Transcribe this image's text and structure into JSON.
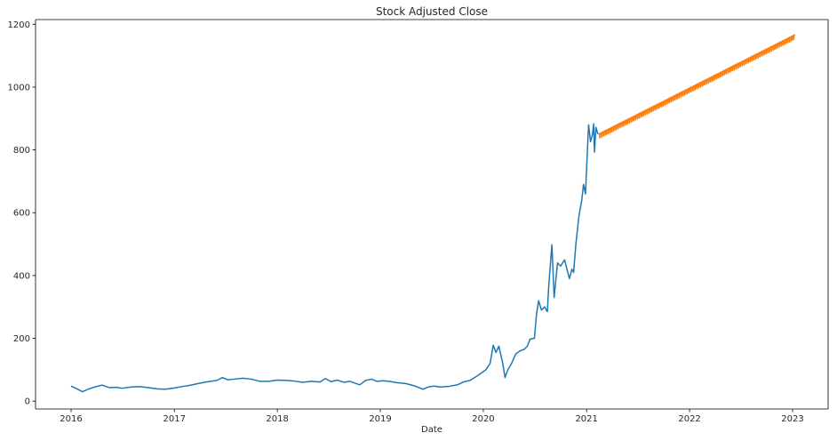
{
  "chart_data": {
    "type": "line",
    "title": "Stock Adjusted Close",
    "xlabel": "Date",
    "ylabel": "",
    "x_axis": "date",
    "xlim": [
      "2015-08-28",
      "2023-05-07"
    ],
    "ylim": [
      -25,
      1215
    ],
    "grid": false,
    "legend": "none",
    "x_ticks": [
      "2016",
      "2017",
      "2018",
      "2019",
      "2020",
      "2021",
      "2022",
      "2023"
    ],
    "y_ticks": [
      0,
      200,
      400,
      600,
      800,
      1000,
      1200
    ],
    "series": [
      {
        "color": "#1f77b4",
        "points": [
          [
            "2016-01-01",
            48
          ],
          [
            "2016-01-20",
            40
          ],
          [
            "2016-02-10",
            30
          ],
          [
            "2016-03-01",
            38
          ],
          [
            "2016-03-25",
            45
          ],
          [
            "2016-04-20",
            51
          ],
          [
            "2016-05-15",
            43
          ],
          [
            "2016-06-10",
            44
          ],
          [
            "2016-07-01",
            41
          ],
          [
            "2016-08-01",
            45
          ],
          [
            "2016-09-01",
            46
          ],
          [
            "2016-10-01",
            43
          ],
          [
            "2016-11-01",
            39
          ],
          [
            "2016-12-01",
            38
          ],
          [
            "2017-01-01",
            42
          ],
          [
            "2017-02-01",
            47
          ],
          [
            "2017-03-01",
            51
          ],
          [
            "2017-04-01",
            57
          ],
          [
            "2017-05-01",
            62
          ],
          [
            "2017-06-01",
            66
          ],
          [
            "2017-06-20",
            75
          ],
          [
            "2017-07-10",
            68
          ],
          [
            "2017-08-01",
            70
          ],
          [
            "2017-09-01",
            73
          ],
          [
            "2017-10-01",
            70
          ],
          [
            "2017-11-01",
            63
          ],
          [
            "2017-12-01",
            63
          ],
          [
            "2018-01-01",
            67
          ],
          [
            "2018-02-01",
            66
          ],
          [
            "2018-03-01",
            64
          ],
          [
            "2018-04-01",
            60
          ],
          [
            "2018-05-01",
            63
          ],
          [
            "2018-06-01",
            61
          ],
          [
            "2018-06-20",
            72
          ],
          [
            "2018-07-10",
            62
          ],
          [
            "2018-08-01",
            67
          ],
          [
            "2018-08-25",
            60
          ],
          [
            "2018-09-15",
            63
          ],
          [
            "2018-10-01",
            58
          ],
          [
            "2018-10-20",
            52
          ],
          [
            "2018-11-10",
            66
          ],
          [
            "2018-12-01",
            70
          ],
          [
            "2018-12-20",
            63
          ],
          [
            "2019-01-10",
            65
          ],
          [
            "2019-02-01",
            63
          ],
          [
            "2019-03-01",
            59
          ],
          [
            "2019-04-01",
            56
          ],
          [
            "2019-05-01",
            49
          ],
          [
            "2019-06-01",
            38
          ],
          [
            "2019-06-20",
            45
          ],
          [
            "2019-07-10",
            48
          ],
          [
            "2019-08-01",
            45
          ],
          [
            "2019-09-01",
            47
          ],
          [
            "2019-10-01",
            52
          ],
          [
            "2019-10-25",
            62
          ],
          [
            "2019-11-15",
            66
          ],
          [
            "2019-12-10",
            80
          ],
          [
            "2020-01-10",
            100
          ],
          [
            "2020-01-25",
            120
          ],
          [
            "2020-02-05",
            178
          ],
          [
            "2020-02-15",
            155
          ],
          [
            "2020-02-25",
            175
          ],
          [
            "2020-03-10",
            120
          ],
          [
            "2020-03-18",
            75
          ],
          [
            "2020-03-28",
            100
          ],
          [
            "2020-04-10",
            120
          ],
          [
            "2020-04-25",
            150
          ],
          [
            "2020-05-10",
            160
          ],
          [
            "2020-05-25",
            165
          ],
          [
            "2020-06-05",
            175
          ],
          [
            "2020-06-15",
            198
          ],
          [
            "2020-06-30",
            200
          ],
          [
            "2020-07-08",
            280
          ],
          [
            "2020-07-15",
            320
          ],
          [
            "2020-07-25",
            290
          ],
          [
            "2020-08-05",
            300
          ],
          [
            "2020-08-15",
            285
          ],
          [
            "2020-08-20",
            370
          ],
          [
            "2020-08-31",
            498
          ],
          [
            "2020-09-08",
            330
          ],
          [
            "2020-09-20",
            440
          ],
          [
            "2020-10-01",
            430
          ],
          [
            "2020-10-15",
            450
          ],
          [
            "2020-11-01",
            390
          ],
          [
            "2020-11-10",
            420
          ],
          [
            "2020-11-16",
            410
          ],
          [
            "2020-11-24",
            500
          ],
          [
            "2020-12-05",
            590
          ],
          [
            "2020-12-15",
            640
          ],
          [
            "2020-12-21",
            690
          ],
          [
            "2020-12-28",
            660
          ],
          [
            "2021-01-08",
            880
          ],
          [
            "2021-01-15",
            826
          ],
          [
            "2021-01-22",
            850
          ],
          [
            "2021-01-26",
            883
          ],
          [
            "2021-01-29",
            793
          ],
          [
            "2021-02-03",
            872
          ],
          [
            "2021-02-10",
            850
          ]
        ]
      },
      {
        "color": "#ff7f0e",
        "x": [
          "2021-02-12",
          "2023-01-10"
        ],
        "y": [
          843,
          1160
        ],
        "weekly_oscillation": 14
      }
    ]
  }
}
